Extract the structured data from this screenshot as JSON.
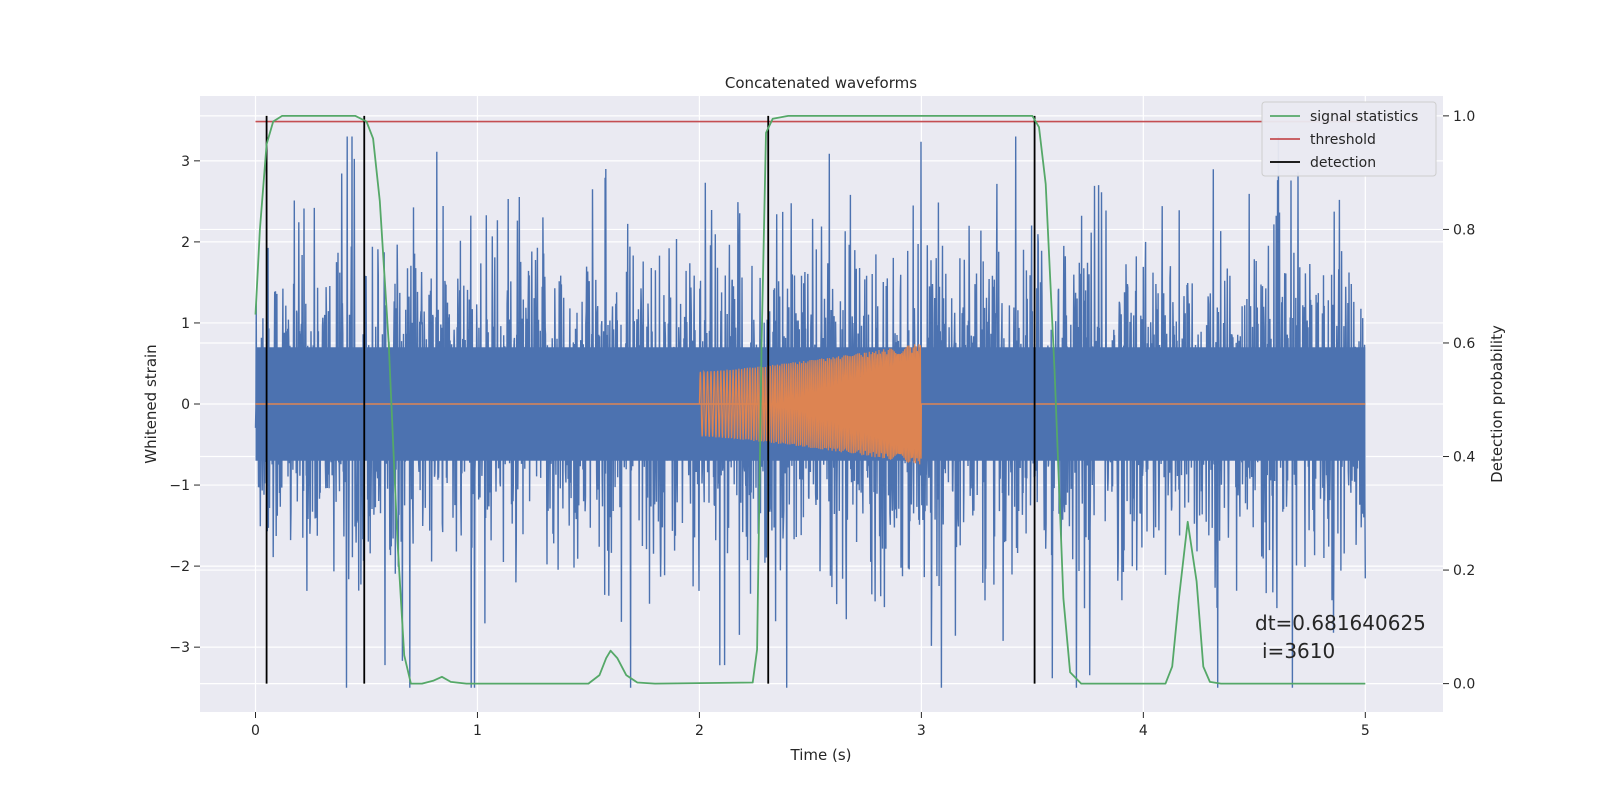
{
  "chart_data": {
    "type": "line",
    "title": "Concatenated waveforms",
    "xlabel": "Time (s)",
    "ylabel_left": "Whitened strain",
    "ylabel_right": "Detection probability",
    "xlim": [
      -0.25,
      5.35
    ],
    "ylim_left": [
      -3.8,
      3.8
    ],
    "ylim_right": [
      -0.05,
      1.035
    ],
    "x_ticks": [
      0,
      1,
      2,
      3,
      4,
      5
    ],
    "x_tick_labels": [
      "0",
      "1",
      "2",
      "3",
      "4",
      "5"
    ],
    "y_left_ticks": [
      -3,
      -2,
      -1,
      0,
      1,
      2,
      3
    ],
    "y_left_tick_labels": [
      "−3",
      "−2",
      "−1",
      "0",
      "1",
      "2",
      "3"
    ],
    "y_right_ticks": [
      0.0,
      0.2,
      0.4,
      0.6,
      0.8,
      1.0
    ],
    "y_right_tick_labels": [
      "0.0",
      "0.2",
      "0.4",
      "0.6",
      "0.8",
      "1.0"
    ],
    "grid": true,
    "legend_position": "upper right",
    "colors": {
      "strain": "#4c72b0",
      "template": "#dd8452",
      "signal_statistics": "#55a868",
      "threshold": "#c44e52",
      "detection": "#000000",
      "axes_background": "#eaeaf2",
      "grid": "#ffffff"
    },
    "series": [
      {
        "name": "signal statistics",
        "axis": "right",
        "x": [
          0.0,
          0.02,
          0.05,
          0.08,
          0.12,
          0.2,
          0.45,
          0.5,
          0.53,
          0.56,
          0.6,
          0.64,
          0.67,
          0.7,
          0.75,
          0.8,
          0.84,
          0.88,
          0.95,
          1.5,
          1.55,
          1.58,
          1.6,
          1.63,
          1.67,
          1.72,
          1.8,
          2.24,
          2.26,
          2.28,
          2.3,
          2.33,
          2.4,
          3.5,
          3.53,
          3.56,
          3.6,
          3.64,
          3.67,
          3.72,
          3.8,
          4.1,
          4.13,
          4.16,
          4.2,
          4.24,
          4.27,
          4.3,
          4.35,
          5.0
        ],
        "y": [
          0.65,
          0.8,
          0.95,
          0.99,
          1.0,
          1.0,
          1.0,
          0.99,
          0.96,
          0.85,
          0.6,
          0.25,
          0.05,
          0.0,
          0.0,
          0.005,
          0.012,
          0.003,
          0.0,
          0.0,
          0.015,
          0.045,
          0.058,
          0.045,
          0.015,
          0.002,
          0.0,
          0.002,
          0.06,
          0.6,
          0.97,
          0.995,
          1.0,
          1.0,
          0.98,
          0.88,
          0.55,
          0.15,
          0.02,
          0.0,
          0.0,
          0.0,
          0.03,
          0.15,
          0.285,
          0.18,
          0.03,
          0.003,
          0.0,
          0.0
        ]
      },
      {
        "name": "threshold",
        "axis": "right",
        "x": [
          0.0,
          5.0
        ],
        "y": [
          0.99,
          0.99
        ]
      },
      {
        "name": "detection",
        "axis": "right",
        "x": [
          0.05,
          0.49,
          2.31,
          3.51
        ],
        "y_range": [
          0.0,
          1.0
        ]
      },
      {
        "axis": "left",
        "x_range": [
          0.0,
          5.0
        ],
        "dense_band": [
          -0.7,
          0.7
        ],
        "spikes_max": [
          3.3,
          -3.5
        ]
      },
      {
        "axis": "left",
        "x": [
          0.0,
          2.0,
          2.0,
          3.0,
          3.0,
          5.0
        ],
        "amplitude": [
          0.0,
          0.0,
          0.4,
          0.75,
          0.0,
          0.0
        ]
      }
    ]
  },
  "legend": {
    "items": [
      {
        "label": "signal statistics",
        "color": "#55a868"
      },
      {
        "label": "threshold",
        "color": "#c44e52"
      },
      {
        "label": "detection",
        "color": "#000000"
      }
    ]
  },
  "annotation": {
    "line1": "dt=0.681640625",
    "line2": "i=3610"
  }
}
